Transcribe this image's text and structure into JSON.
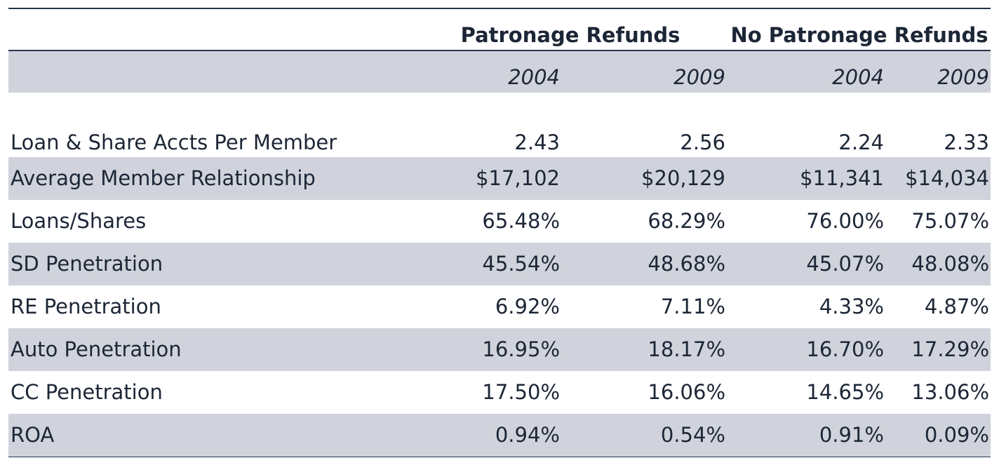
{
  "table": {
    "groups": [
      "Patronage Refunds",
      "No Patronage Refunds"
    ],
    "years": [
      "2004",
      "2009",
      "2004",
      "2009"
    ],
    "rows": [
      [
        "Loan & Share Accts Per Member",
        "2.43",
        "2.56",
        "2.24",
        "2.33"
      ],
      [
        "Average Member Relationship",
        "$17,102",
        "$20,129",
        "$11,341",
        "$14,034"
      ],
      [
        "Loans/Shares",
        "65.48%",
        "68.29%",
        "76.00%",
        "75.07%"
      ],
      [
        "SD Penetration",
        "45.54%",
        "48.68%",
        "45.07%",
        "48.08%"
      ],
      [
        "RE Penetration",
        "6.92%",
        "7.11%",
        "4.33%",
        "4.87%"
      ],
      [
        "Auto Penetration",
        "16.95%",
        "18.17%",
        "16.70%",
        "17.29%"
      ],
      [
        "CC Penetration",
        "17.50%",
        "16.06%",
        "14.65%",
        "13.06%"
      ],
      [
        "ROA",
        "0.94%",
        "0.54%",
        "0.91%",
        "0.09%"
      ]
    ]
  }
}
